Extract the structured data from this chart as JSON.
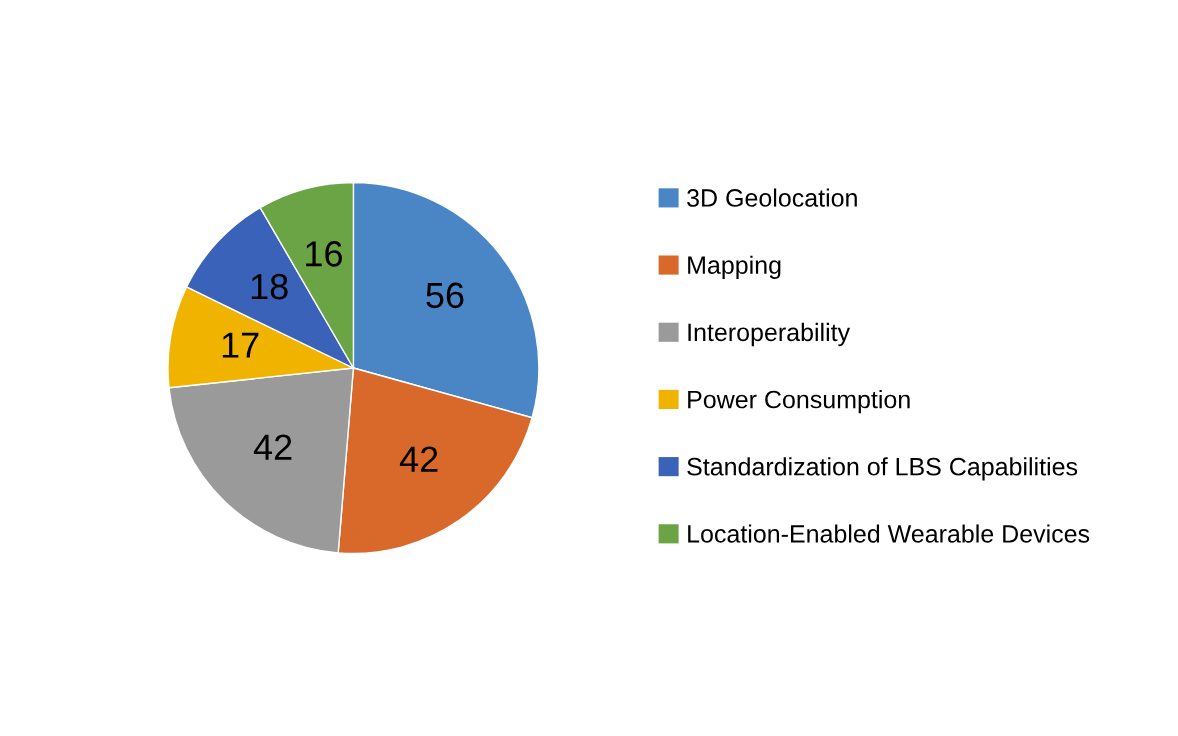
{
  "chart_data": {
    "type": "pie",
    "categories": [
      "3D Geolocation",
      "Mapping",
      "Interoperability",
      "Power Consumption",
      "Standardization of LBS Capabilities",
      "Location-Enabled Wearable Devices"
    ],
    "values": [
      56,
      42,
      42,
      17,
      18,
      16
    ],
    "colors": [
      "#4a86c5",
      "#d9692a",
      "#9a9a9a",
      "#f0b400",
      "#3a62b8",
      "#6aa445"
    ],
    "data_labels": true,
    "legend": "right"
  }
}
